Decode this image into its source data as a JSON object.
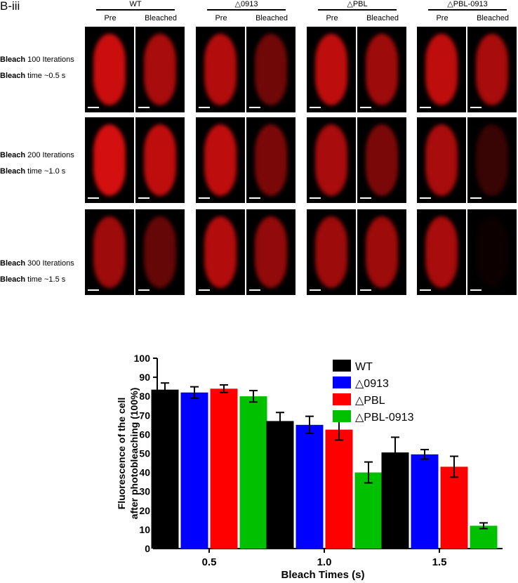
{
  "panel_label": "B-iii",
  "strains": [
    {
      "name": "WT"
    },
    {
      "name": "△0913"
    },
    {
      "name": "△PBL"
    },
    {
      "name": "△PBL-0913"
    }
  ],
  "column_labels": {
    "pre": "Pre",
    "bleached": "Bleached"
  },
  "rows": [
    {
      "iter_bold": "Bleach",
      "iter_rest": " 100 Iterations",
      "time_bold": "Bleach",
      "time_rest": " time ~0.5 s"
    },
    {
      "iter_bold": "Bleach",
      "iter_rest": " 200 Iterations",
      "time_bold": "Bleach",
      "time_rest": " time ~1.0 s"
    },
    {
      "iter_bold": "Bleach",
      "iter_rest": " 300 Iterations",
      "time_bold": "Bleach",
      "time_rest": " time ~1.5 s"
    }
  ],
  "image_colors": {
    "background": "#000000",
    "signal": "#e01010"
  },
  "chart_data": {
    "type": "bar",
    "categories": [
      "0.5",
      "1.0",
      "1.5"
    ],
    "series": [
      {
        "name": "WT",
        "color": "#000000",
        "values": [
          83.5,
          67,
          50.5
        ],
        "errors": [
          3.5,
          4.5,
          8
        ]
      },
      {
        "name": "△0913",
        "color": "#0000ff",
        "values": [
          82,
          65,
          49.5
        ],
        "errors": [
          3,
          4.5,
          2.5
        ]
      },
      {
        "name": "△PBL",
        "color": "#ff0000",
        "values": [
          84,
          62.5,
          43
        ],
        "errors": [
          2,
          5.5,
          5.5
        ]
      },
      {
        "name": "△PBL-0913",
        "color": "#00c000",
        "values": [
          80,
          40,
          12
        ],
        "errors": [
          3,
          5.5,
          1.5
        ]
      }
    ],
    "xlabel": "Bleach Times (s)",
    "ylabel_line1": "Fluorescence of the cell",
    "ylabel_line2": "after photobleaching (100%)",
    "ylim": [
      0,
      100
    ],
    "yticks": [
      "0",
      "10",
      "20",
      "30",
      "40",
      "50",
      "60",
      "70",
      "80",
      "90",
      "100"
    ],
    "legend_position": "top-right",
    "grid": false
  }
}
